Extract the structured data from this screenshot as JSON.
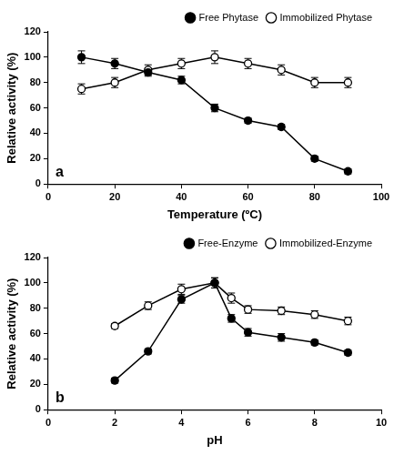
{
  "chart_data": [
    {
      "type": "line",
      "x_label": "Temperature (ºC)",
      "y_label": "Relative activity (%)",
      "annotations": [
        "a"
      ],
      "xlim": [
        0,
        100
      ],
      "xticks": [
        0,
        20,
        40,
        60,
        80,
        100
      ],
      "ylim": [
        0,
        120
      ],
      "yticks": [
        0,
        20,
        40,
        60,
        80,
        100,
        120
      ],
      "grid": false,
      "legend": "upper right",
      "x": [
        10,
        20,
        30,
        40,
        50,
        60,
        70,
        80,
        90
      ],
      "series": [
        {
          "name": "Free Phytase",
          "color": "#000000",
          "marker": "filled circle",
          "values": [
            100,
            95,
            88,
            82,
            60,
            50,
            45,
            20,
            10
          ],
          "errors": [
            5,
            4,
            3,
            3,
            3,
            2,
            2,
            2,
            2
          ]
        },
        {
          "name": "Immobilized Phytase",
          "color": "#000000",
          "marker": "open circle",
          "values": [
            75,
            80,
            90,
            95,
            100,
            95,
            90,
            80,
            80
          ],
          "errors": [
            4,
            4,
            4,
            4,
            5,
            4,
            4,
            4,
            4
          ]
        }
      ]
    },
    {
      "type": "line",
      "x_label": "pH",
      "y_label": "Relative activity (%)",
      "annotations": [
        "b"
      ],
      "xlim": [
        0,
        10
      ],
      "xticks": [
        0,
        2,
        4,
        6,
        8,
        10
      ],
      "ylim": [
        0,
        120
      ],
      "yticks": [
        0,
        20,
        40,
        60,
        80,
        100,
        120
      ],
      "grid": false,
      "legend": "upper right",
      "x": [
        2,
        3,
        4,
        5,
        5.5,
        6,
        7,
        8,
        9
      ],
      "series": [
        {
          "name": "Free-Enzyme",
          "color": "#000000",
          "marker": "filled circle",
          "values": [
            23,
            46,
            87,
            100,
            72,
            61,
            57,
            53,
            45
          ],
          "errors": [
            2,
            2,
            3,
            4,
            3,
            3,
            3,
            2,
            2
          ]
        },
        {
          "name": "Immobilized-Enzyme",
          "color": "#000000",
          "marker": "open circle",
          "values": [
            66,
            82,
            95,
            100,
            88,
            79,
            78,
            75,
            70
          ],
          "errors": [
            2,
            3,
            4,
            4,
            4,
            3,
            3,
            3,
            3
          ]
        }
      ]
    }
  ]
}
